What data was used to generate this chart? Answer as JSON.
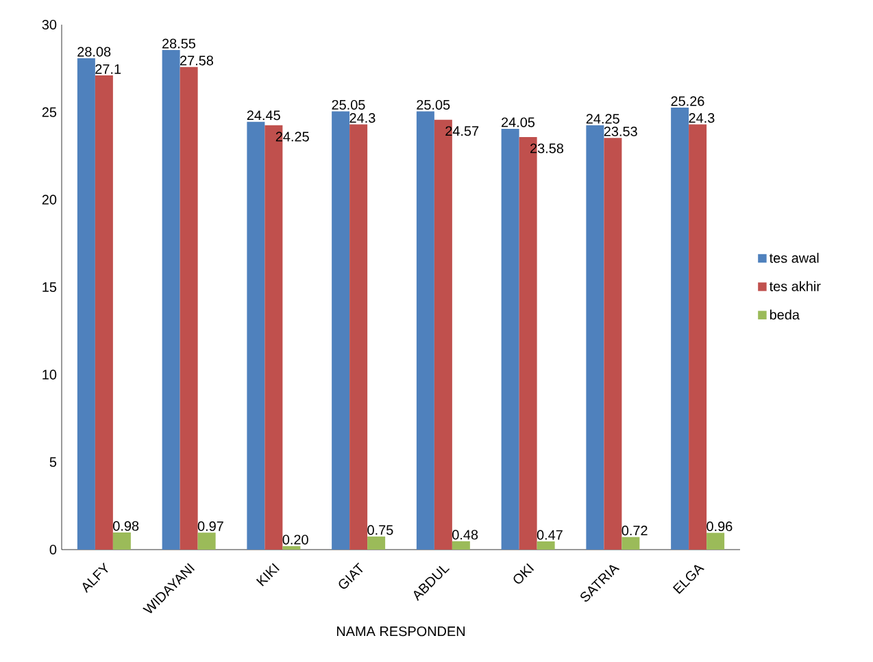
{
  "chart_data": {
    "type": "bar",
    "xlabel": "NAMA RESPONDEN",
    "categories": [
      "ALFY",
      "WIDAYANI",
      "KIKI",
      "GIAT",
      "ABDUL",
      "OKI",
      "SATRIA",
      "ELGA"
    ],
    "series": [
      {
        "name": "tes awal",
        "color": "#4f81bd",
        "values": [
          28.08,
          28.55,
          24.45,
          25.05,
          25.05,
          24.05,
          24.25,
          25.26
        ],
        "value_labels": [
          "28.08",
          "28.55",
          "24.45",
          "25.05",
          "25.05",
          "24.05",
          "24.25",
          "25.26"
        ]
      },
      {
        "name": "tes akhir",
        "color": "#c0504d",
        "values": [
          27.1,
          27.58,
          24.25,
          24.3,
          24.57,
          23.58,
          23.53,
          24.3
        ],
        "value_labels": [
          "27.1",
          "27.58",
          "24.25",
          "24.3",
          "24.57",
          "23.58",
          "23.53",
          "24.3"
        ]
      },
      {
        "name": "beda",
        "color": "#9bbb59",
        "values": [
          0.98,
          0.97,
          0.2,
          0.75,
          0.48,
          0.47,
          0.72,
          0.96
        ],
        "value_labels": [
          "0.98",
          "0.97",
          "0.20",
          "0.75",
          "0.48",
          "0.47",
          "0.72",
          "0.96"
        ]
      }
    ],
    "ylim": [
      0,
      30
    ],
    "yticks": [
      0,
      5,
      10,
      15,
      20,
      25,
      30
    ],
    "grid": false,
    "legend": "right"
  }
}
